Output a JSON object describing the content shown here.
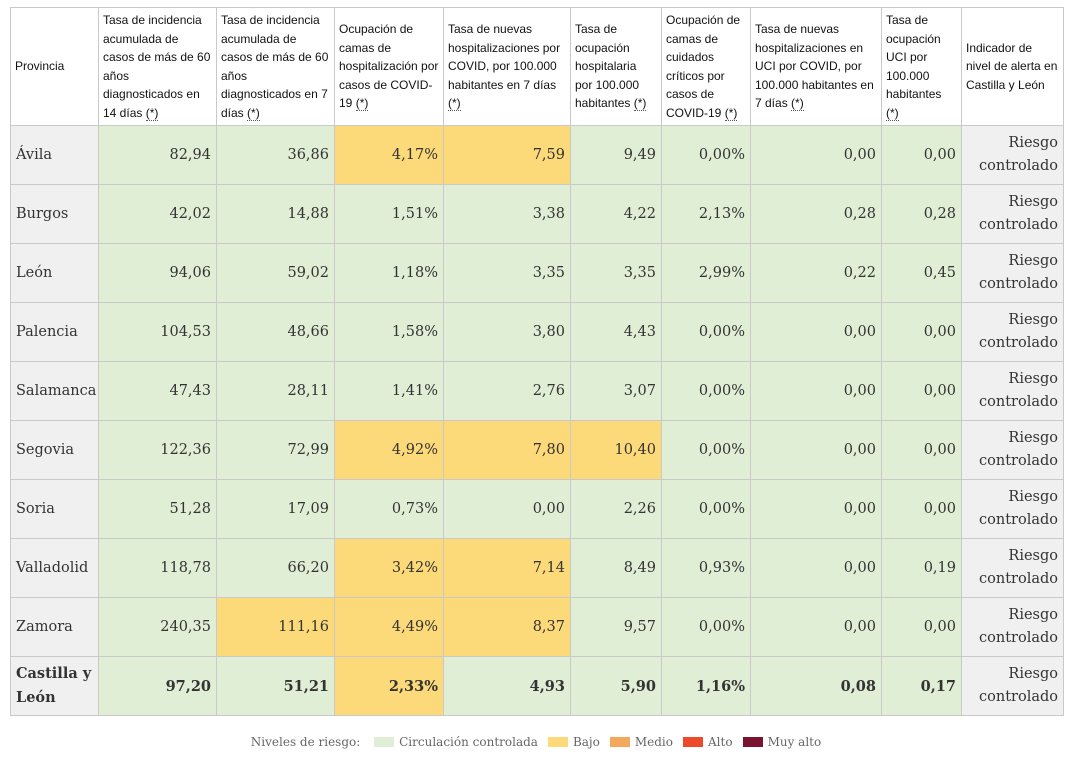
{
  "colors": {
    "controlada": "#e0eed6",
    "bajo": "#fcd979",
    "medio": "#f4a85c",
    "alto": "#ee4a2a",
    "muy_alto": "#7a1232"
  },
  "table": {
    "headers": [
      {
        "text": "Provincia",
        "star": false
      },
      {
        "text": "Tasa de incidencia acumulada de casos de más de 60 años diagnosticados en 14 días",
        "star": true
      },
      {
        "text": "Tasa de incidencia acumulada de casos de más de 60 años diagnosticados en 7 días",
        "star": true
      },
      {
        "text": "Ocupación de camas de hospitalización por casos de COVID-19",
        "star": true
      },
      {
        "text": "Tasa de nuevas hospitalizaciones por COVID, por 100.000 habitantes en 7 días",
        "star": true
      },
      {
        "text": "Tasa de ocupación hospitalaria por 100.000 habitantes",
        "star": true
      },
      {
        "text": "Ocupación de camas de cuidados críticos por casos de COVID-19",
        "star": true
      },
      {
        "text": "Tasa de nuevas hospitalizaciones en UCI por COVID, por 100.000 habitantes en 7 días",
        "star": true
      },
      {
        "text": "Tasa de ocupación UCI por 100.000 habitantes",
        "star": true
      },
      {
        "text": "Indicador de nivel de alerta en Castilla y León",
        "star": false
      }
    ],
    "star_label": "(*)",
    "rows": [
      {
        "provincia": "Ávila",
        "cells": [
          [
            "82,94",
            "g"
          ],
          [
            "36,86",
            "g"
          ],
          [
            "4,17%",
            "y"
          ],
          [
            "7,59",
            "y"
          ],
          [
            "9,49",
            "g"
          ],
          [
            "0,00%",
            "g"
          ],
          [
            "0,00",
            "g"
          ],
          [
            "0,00",
            "g"
          ]
        ],
        "indicador": "Riesgo controlado"
      },
      {
        "provincia": "Burgos",
        "cells": [
          [
            "42,02",
            "g"
          ],
          [
            "14,88",
            "g"
          ],
          [
            "1,51%",
            "g"
          ],
          [
            "3,38",
            "g"
          ],
          [
            "4,22",
            "g"
          ],
          [
            "2,13%",
            "g"
          ],
          [
            "0,28",
            "g"
          ],
          [
            "0,28",
            "g"
          ]
        ],
        "indicador": "Riesgo controlado"
      },
      {
        "provincia": "León",
        "cells": [
          [
            "94,06",
            "g"
          ],
          [
            "59,02",
            "g"
          ],
          [
            "1,18%",
            "g"
          ],
          [
            "3,35",
            "g"
          ],
          [
            "3,35",
            "g"
          ],
          [
            "2,99%",
            "g"
          ],
          [
            "0,22",
            "g"
          ],
          [
            "0,45",
            "g"
          ]
        ],
        "indicador": "Riesgo controlado"
      },
      {
        "provincia": "Palencia",
        "cells": [
          [
            "104,53",
            "g"
          ],
          [
            "48,66",
            "g"
          ],
          [
            "1,58%",
            "g"
          ],
          [
            "3,80",
            "g"
          ],
          [
            "4,43",
            "g"
          ],
          [
            "0,00%",
            "g"
          ],
          [
            "0,00",
            "g"
          ],
          [
            "0,00",
            "g"
          ]
        ],
        "indicador": "Riesgo controlado"
      },
      {
        "provincia": "Salamanca",
        "cells": [
          [
            "47,43",
            "g"
          ],
          [
            "28,11",
            "g"
          ],
          [
            "1,41%",
            "g"
          ],
          [
            "2,76",
            "g"
          ],
          [
            "3,07",
            "g"
          ],
          [
            "0,00%",
            "g"
          ],
          [
            "0,00",
            "g"
          ],
          [
            "0,00",
            "g"
          ]
        ],
        "indicador": "Riesgo controlado"
      },
      {
        "provincia": "Segovia",
        "cells": [
          [
            "122,36",
            "g"
          ],
          [
            "72,99",
            "g"
          ],
          [
            "4,92%",
            "y"
          ],
          [
            "7,80",
            "y"
          ],
          [
            "10,40",
            "y"
          ],
          [
            "0,00%",
            "g"
          ],
          [
            "0,00",
            "g"
          ],
          [
            "0,00",
            "g"
          ]
        ],
        "indicador": "Riesgo controlado"
      },
      {
        "provincia": "Soria",
        "cells": [
          [
            "51,28",
            "g"
          ],
          [
            "17,09",
            "g"
          ],
          [
            "0,73%",
            "g"
          ],
          [
            "0,00",
            "g"
          ],
          [
            "2,26",
            "g"
          ],
          [
            "0,00%",
            "g"
          ],
          [
            "0,00",
            "g"
          ],
          [
            "0,00",
            "g"
          ]
        ],
        "indicador": "Riesgo controlado"
      },
      {
        "provincia": "Valladolid",
        "cells": [
          [
            "118,78",
            "g"
          ],
          [
            "66,20",
            "g"
          ],
          [
            "3,42%",
            "y"
          ],
          [
            "7,14",
            "y"
          ],
          [
            "8,49",
            "g"
          ],
          [
            "0,93%",
            "g"
          ],
          [
            "0,00",
            "g"
          ],
          [
            "0,19",
            "g"
          ]
        ],
        "indicador": "Riesgo controlado"
      },
      {
        "provincia": "Zamora",
        "cells": [
          [
            "240,35",
            "g"
          ],
          [
            "111,16",
            "y"
          ],
          [
            "4,49%",
            "y"
          ],
          [
            "8,37",
            "y"
          ],
          [
            "9,57",
            "g"
          ],
          [
            "0,00%",
            "g"
          ],
          [
            "0,00",
            "g"
          ],
          [
            "0,00",
            "g"
          ]
        ],
        "indicador": "Riesgo controlado"
      }
    ],
    "total": {
      "provincia": "Castilla y León",
      "cells": [
        [
          "97,20",
          "g"
        ],
        [
          "51,21",
          "g"
        ],
        [
          "2,33%",
          "y"
        ],
        [
          "4,93",
          "g"
        ],
        [
          "5,90",
          "g"
        ],
        [
          "1,16%",
          "g"
        ],
        [
          "0,08",
          "g"
        ],
        [
          "0,17",
          "g"
        ]
      ],
      "indicador": "Riesgo controlado"
    }
  },
  "legend": {
    "title": "Niveles de riesgo:",
    "items": [
      {
        "label": "Circulación controlada",
        "color_key": "controlada"
      },
      {
        "label": "Bajo",
        "color_key": "bajo"
      },
      {
        "label": "Medio",
        "color_key": "medio"
      },
      {
        "label": "Alto",
        "color_key": "alto"
      },
      {
        "label": "Muy alto",
        "color_key": "muy_alto"
      }
    ]
  }
}
